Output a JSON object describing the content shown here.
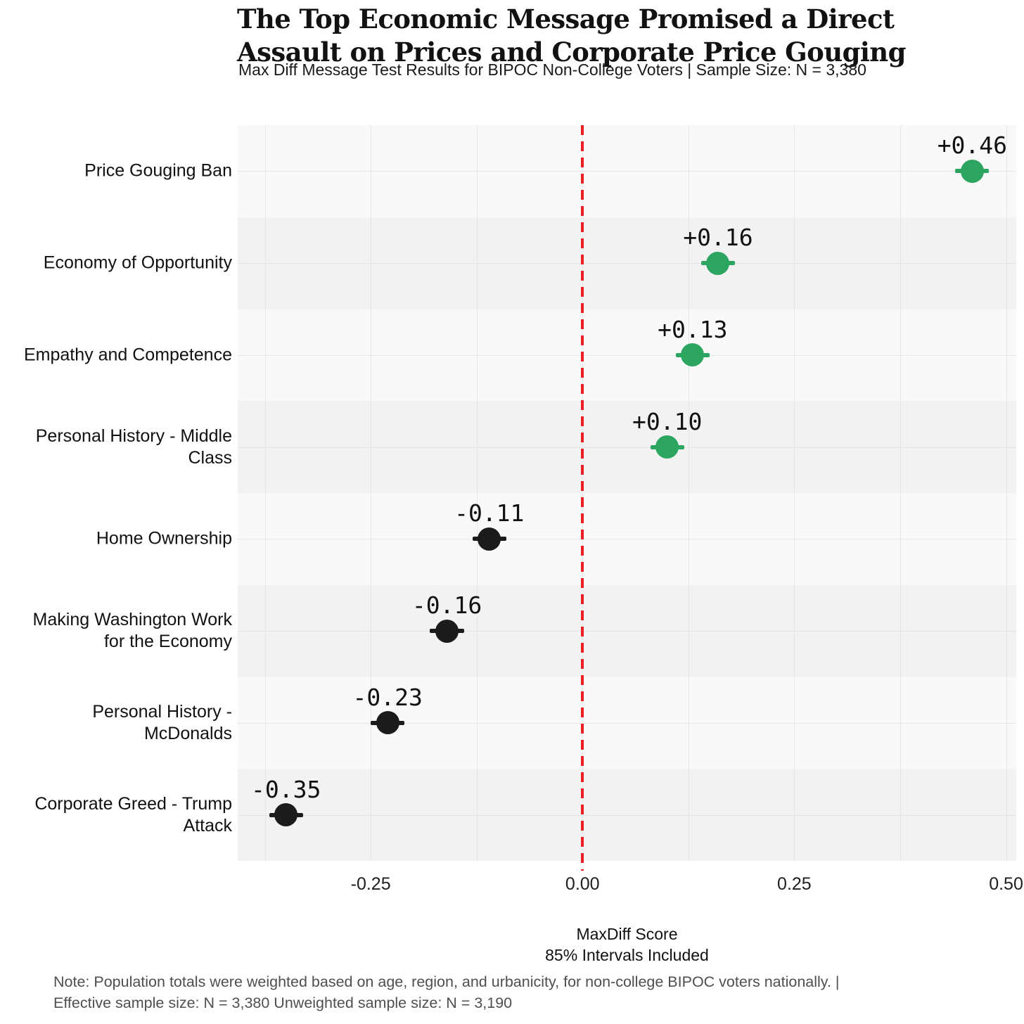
{
  "chart_data": {
    "type": "scatter",
    "subtype": "dot-plot-with-error-bars",
    "title": "The Top Economic Message Promised a Direct Assault on Prices and Corporate Price Gouging",
    "title_lines": [
      "The Top Economic Message Promised a Direct",
      "Assault on Prices and Corporate Price Gouging"
    ],
    "subtitle": "Max Diff Message Test Results for BIPOC Non-College Voters | Sample Size: N = 3,380",
    "categories": [
      "Price Gouging Ban",
      "Economy of Opportunity",
      "Empathy and Competence",
      "Personal History - Middle Class",
      "Home Ownership",
      "Making Washington Work for the Economy",
      "Personal History - McDonalds",
      "Corporate Greed - Trump Attack"
    ],
    "category_label_lines": [
      [
        "Price Gouging Ban"
      ],
      [
        "Economy of Opportunity"
      ],
      [
        "Empathy and Competence"
      ],
      [
        "Personal History - Middle",
        "Class"
      ],
      [
        "Home Ownership"
      ],
      [
        "Making Washington Work",
        "for the Economy"
      ],
      [
        "Personal History -",
        "McDonalds"
      ],
      [
        "Corporate Greed - Trump",
        "Attack"
      ]
    ],
    "values": [
      0.46,
      0.16,
      0.13,
      0.1,
      -0.11,
      -0.16,
      -0.23,
      -0.35
    ],
    "value_labels": [
      "+0.46",
      "+0.16",
      "+0.13",
      "+0.10",
      "-0.11",
      "-0.16",
      "-0.23",
      "-0.35"
    ],
    "ci_halfwidth": 0.02,
    "interval_note": "85% Intervals Included",
    "positive_color": "#2BA55F",
    "negative_color": "#1b1b1b",
    "reference_line": {
      "x": 0.0,
      "color": "#EC1F27",
      "style": "dashed"
    },
    "xlim": [
      -0.407,
      0.512
    ],
    "gridline_step": 0.125,
    "x_ticks": [
      {
        "value": -0.25,
        "label": "-0.25"
      },
      {
        "value": 0.0,
        "label": "0.00"
      },
      {
        "value": 0.25,
        "label": "0.25"
      },
      {
        "value": 0.5,
        "label": "0.50"
      }
    ],
    "xlabel": "MaxDiff Score",
    "xlabel_lines": [
      "MaxDiff Score",
      "85% Intervals Included"
    ],
    "note": "Note: Population totals were weighted based on age, region, and urbanicity, for non-college BIPOC voters nationally. | Effective sample size: N = 3,380 Unweighted sample size: N = 3,190",
    "note_lines": [
      "Note: Population totals were weighted based on age, region, and urbanicity, for non-college BIPOC voters nationally. |",
      "Effective sample size: N = 3,380 Unweighted sample size: N = 3,190"
    ],
    "band_colors": [
      "#f9f9f9",
      "#f2f2f2"
    ],
    "grid": "on",
    "legend": "none"
  }
}
